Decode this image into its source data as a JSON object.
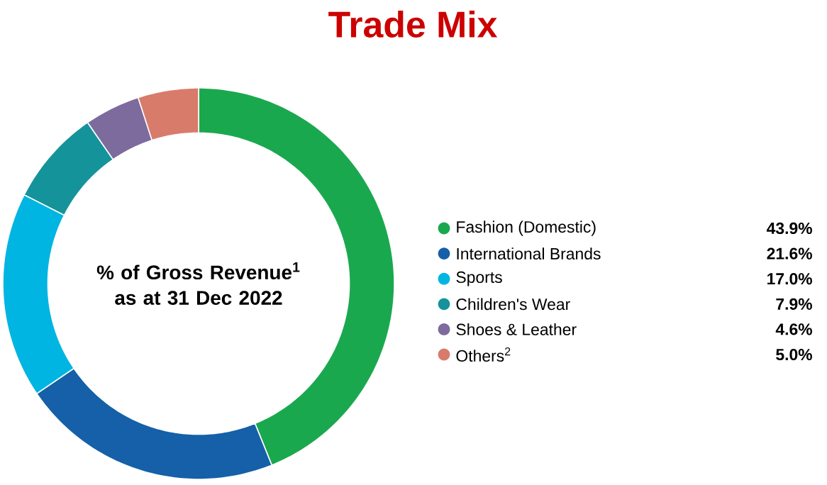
{
  "chart_data": {
    "type": "donut",
    "title": "Trade Mix",
    "categories": [
      "Fashion (Domestic)",
      "International Brands",
      "Sports",
      "Children's Wear",
      "Shoes & Leather",
      "Others$^{2}$"
    ],
    "values": [
      43.9,
      21.6,
      17.0,
      7.9,
      4.6,
      5.0
    ],
    "value_labels": [
      "43.9%",
      "21.6%",
      "17.0%",
      "7.9%",
      "4.6%",
      "5.0%"
    ],
    "colors": [
      "#1aa84f",
      "#1560a8",
      "#00b5e2",
      "#14939a",
      "#7d6b9e",
      "#d97b6a"
    ],
    "legend": "right",
    "annotations": [
      "% of Gross Revenue$^{1}$ as at 31 Dec 2022"
    ]
  }
}
